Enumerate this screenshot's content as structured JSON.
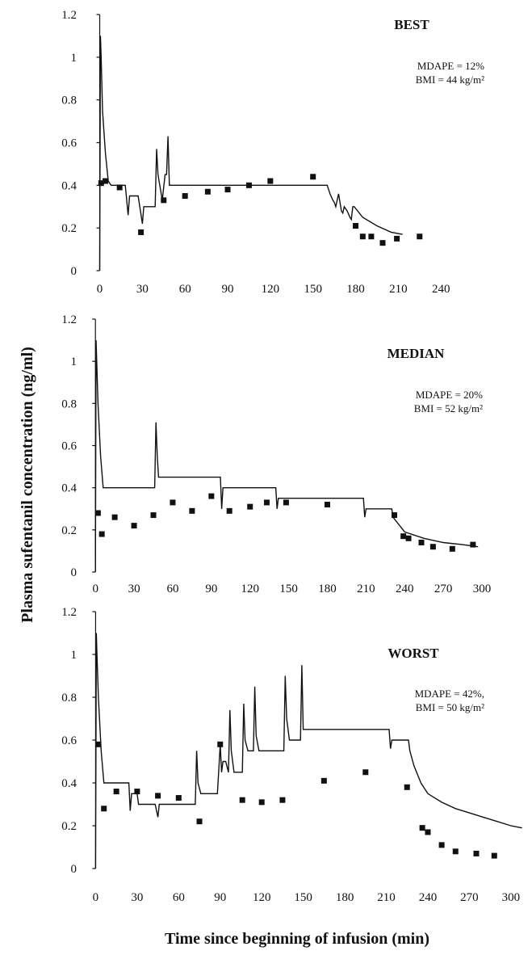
{
  "figure": {
    "ylabel": "Plasma sufentanil concentration (ng/ml)",
    "xlabel": "Time since beginning of infusion (min)"
  },
  "chart_data": [
    {
      "type": "line",
      "title": "BEST",
      "annotations": [
        "MDAPE = 12%",
        "BMI = 44 kg/m²"
      ],
      "ylim": [
        0,
        1.2
      ],
      "yticks": [
        "0",
        "0.2",
        "0.4",
        "0.6",
        "0.8",
        "1",
        "1.2"
      ],
      "xlim": [
        -2,
        245
      ],
      "xticks": [
        "0",
        "30",
        "60",
        "90",
        "120",
        "150",
        "180",
        "210",
        "240"
      ],
      "series": [
        {
          "type": "line",
          "x": [
            0,
            0.5,
            1,
            2,
            4,
            6,
            8,
            9,
            18,
            20,
            21,
            27,
            30,
            31,
            39,
            40,
            41,
            44,
            46,
            47,
            48,
            49,
            160,
            162,
            164,
            165,
            166,
            168,
            170,
            171,
            172,
            174,
            176,
            177,
            178,
            179,
            185,
            195,
            205,
            213
          ],
          "y": [
            0,
            1.1,
            1.0,
            0.75,
            0.55,
            0.42,
            0.4,
            0.4,
            0.4,
            0.26,
            0.35,
            0.35,
            0.22,
            0.3,
            0.3,
            0.57,
            0.45,
            0.33,
            0.45,
            0.45,
            0.63,
            0.4,
            0.4,
            0.36,
            0.33,
            0.32,
            0.3,
            0.36,
            0.28,
            0.27,
            0.3,
            0.28,
            0.25,
            0.24,
            0.3,
            0.3,
            0.25,
            0.21,
            0.18,
            0.17
          ]
        },
        {
          "type": "scatter",
          "x": [
            1,
            4,
            14,
            29,
            45,
            60,
            76,
            90,
            105,
            120,
            150,
            180,
            185,
            191,
            199,
            209,
            225
          ],
          "y": [
            0.41,
            0.42,
            0.39,
            0.18,
            0.33,
            0.35,
            0.37,
            0.38,
            0.4,
            0.42,
            0.44,
            0.21,
            0.16,
            0.16,
            0.13,
            0.15,
            0.16
          ]
        }
      ]
    },
    {
      "type": "line",
      "title": "MEDIAN",
      "annotations": [
        "MDAPE = 20%",
        "BMI = 52 kg/m²"
      ],
      "ylim": [
        0,
        1.2
      ],
      "yticks": [
        "0",
        "0.2",
        "0.4",
        "0.6",
        "0.8",
        "1",
        "1.2"
      ],
      "xlim": [
        -2,
        305
      ],
      "xticks": [
        "0",
        "30",
        "60",
        "90",
        "120",
        "150",
        "180",
        "210",
        "240",
        "270",
        "300"
      ],
      "series": [
        {
          "type": "line",
          "x": [
            0,
            0.5,
            1,
            2,
            4,
            6,
            8,
            46,
            47,
            48,
            49,
            97,
            98,
            99,
            140,
            141,
            142,
            145,
            208,
            209,
            210,
            211,
            230,
            231,
            240,
            255,
            270,
            285,
            297
          ],
          "y": [
            0,
            1.1,
            1.0,
            0.8,
            0.55,
            0.4,
            0.4,
            0.4,
            0.71,
            0.55,
            0.45,
            0.45,
            0.3,
            0.4,
            0.4,
            0.3,
            0.35,
            0.35,
            0.35,
            0.26,
            0.3,
            0.3,
            0.3,
            0.26,
            0.19,
            0.16,
            0.14,
            0.13,
            0.12
          ]
        },
        {
          "type": "scatter",
          "x": [
            2,
            5,
            15,
            30,
            45,
            60,
            75,
            90,
            104,
            120,
            133,
            148,
            180,
            232,
            239,
            243,
            253,
            262,
            277,
            293
          ],
          "y": [
            0.28,
            0.18,
            0.26,
            0.22,
            0.27,
            0.33,
            0.29,
            0.36,
            0.29,
            0.31,
            0.33,
            0.33,
            0.32,
            0.27,
            0.17,
            0.16,
            0.14,
            0.12,
            0.11,
            0.13
          ]
        }
      ]
    },
    {
      "type": "line",
      "title": "WORST",
      "annotations": [
        "MDAPE = 42%,",
        "BMI = 50 kg/m²"
      ],
      "ylim": [
        0,
        1.2
      ],
      "yticks": [
        "0",
        "0.2",
        "0.4",
        "0.6",
        "0.8",
        "1",
        "1.2"
      ],
      "xlim": [
        -2,
        310
      ],
      "xticks": [
        "0",
        "30",
        "60",
        "90",
        "120",
        "150",
        "180",
        "210",
        "240",
        "270",
        "300"
      ],
      "series": [
        {
          "type": "line",
          "x": [
            0,
            0.5,
            1,
            2,
            4,
            6,
            8,
            24,
            25,
            26,
            30,
            31,
            43,
            45,
            46,
            72,
            73,
            74,
            76,
            78,
            88,
            90,
            91,
            92,
            94,
            96,
            97,
            98,
            100,
            102,
            106,
            107,
            108,
            110,
            112,
            114,
            115,
            116,
            118,
            120,
            136,
            137,
            138,
            140,
            142,
            148,
            149,
            150,
            152,
            153,
            212,
            213,
            214,
            216,
            226,
            227,
            230,
            235,
            240,
            250,
            260,
            270,
            280,
            290,
            300,
            308
          ],
          "y": [
            0,
            1.1,
            1.0,
            0.8,
            0.55,
            0.4,
            0.4,
            0.4,
            0.27,
            0.35,
            0.35,
            0.3,
            0.3,
            0.24,
            0.3,
            0.3,
            0.55,
            0.4,
            0.35,
            0.35,
            0.35,
            0.58,
            0.45,
            0.5,
            0.5,
            0.45,
            0.74,
            0.55,
            0.45,
            0.45,
            0.45,
            0.77,
            0.6,
            0.55,
            0.55,
            0.55,
            0.85,
            0.62,
            0.55,
            0.55,
            0.55,
            0.9,
            0.7,
            0.6,
            0.6,
            0.6,
            0.95,
            0.65,
            0.65,
            0.65,
            0.65,
            0.56,
            0.6,
            0.6,
            0.6,
            0.55,
            0.48,
            0.4,
            0.35,
            0.31,
            0.28,
            0.26,
            0.24,
            0.22,
            0.2,
            0.19
          ]
        },
        {
          "type": "scatter",
          "x": [
            2,
            6,
            15,
            30,
            45,
            60,
            75,
            90,
            106,
            120,
            135,
            165,
            195,
            225,
            236,
            240,
            250,
            260,
            275,
            288
          ],
          "y": [
            0.58,
            0.28,
            0.36,
            0.36,
            0.34,
            0.33,
            0.22,
            0.58,
            0.32,
            0.31,
            0.32,
            0.41,
            0.45,
            0.38,
            0.19,
            0.17,
            0.11,
            0.08,
            0.07,
            0.06
          ]
        }
      ]
    }
  ]
}
